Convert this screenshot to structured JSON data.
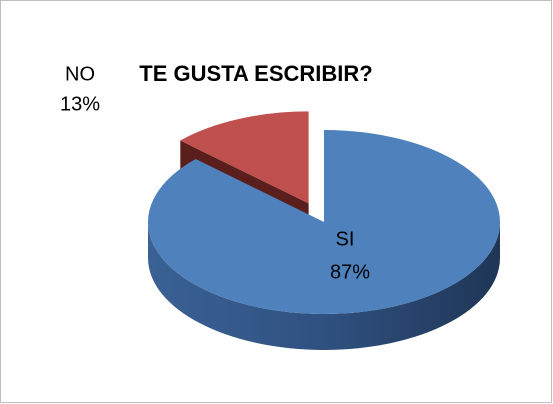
{
  "chart_data": {
    "type": "pie3d",
    "title": "TE GUSTA ESCRIBIR?",
    "categories": [
      "SI",
      "NO"
    ],
    "values": [
      87,
      13
    ],
    "value_labels": [
      "87%",
      "13%"
    ],
    "colors": [
      "#4f81bd",
      "#c0504d"
    ],
    "exploded": [
      false,
      true
    ]
  }
}
